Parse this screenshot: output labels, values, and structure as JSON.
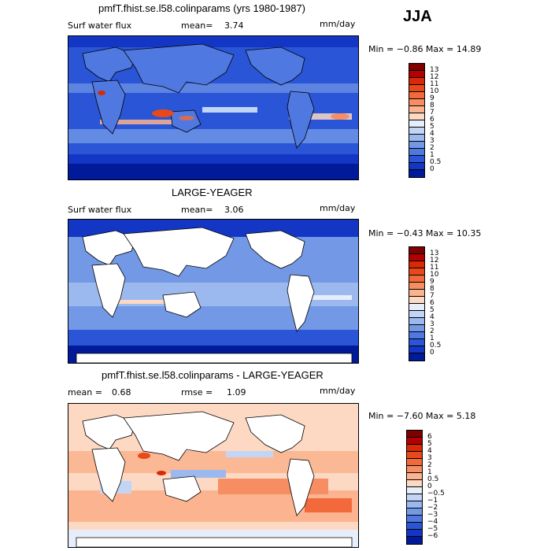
{
  "season": "JJA",
  "panels": [
    {
      "title": "pmfT.fhist.se.l58.colinparams (yrs 1980-1987)",
      "left_label": "Surf water flux",
      "stat_label": "mean=",
      "stat_value": "3.74",
      "stat2_label": "",
      "stat2_value": "",
      "units": "mm/day",
      "min_max": "Min =  −0.86 Max =  14.89",
      "land_masked": false,
      "colorbar": {
        "labels": [
          "13",
          "12",
          "11",
          "10",
          "9",
          "8",
          "7",
          "6",
          "5",
          "4",
          "3",
          "2",
          "1",
          "0.5",
          "0"
        ],
        "colors": [
          "#7f0000",
          "#b40000",
          "#d72a05",
          "#e8491a",
          "#f26a3b",
          "#f78e63",
          "#fbb48f",
          "#fdd9c4",
          "#e6eefb",
          "#c2d5f5",
          "#9bb9ee",
          "#7399e6",
          "#4f78e0",
          "#2a55d6",
          "#1436c4",
          "#001a99"
        ]
      }
    },
    {
      "title": "LARGE-YEAGER",
      "left_label": "Surf water flux",
      "stat_label": "mean=",
      "stat_value": "3.06",
      "stat2_label": "",
      "stat2_value": "",
      "units": "mm/day",
      "min_max": "Min =  −0.43 Max =  10.35",
      "land_masked": true,
      "colorbar": {
        "labels": [
          "13",
          "12",
          "11",
          "10",
          "9",
          "8",
          "7",
          "6",
          "5",
          "4",
          "3",
          "2",
          "1",
          "0.5",
          "0"
        ],
        "colors": [
          "#7f0000",
          "#b40000",
          "#d72a05",
          "#e8491a",
          "#f26a3b",
          "#f78e63",
          "#fbb48f",
          "#fdd9c4",
          "#e6eefb",
          "#c2d5f5",
          "#9bb9ee",
          "#7399e6",
          "#4f78e0",
          "#2a55d6",
          "#1436c4",
          "#001a99"
        ]
      }
    },
    {
      "title": "pmfT.fhist.se.l58.colinparams - LARGE-YEAGER",
      "left_label": "mean =",
      "stat_label": "",
      "stat_value": "0.68",
      "stat2_label": "rmse =",
      "stat2_value": "1.09",
      "units": "mm/day",
      "min_max": "Min =  −7.60 Max =   5.18",
      "land_masked": true,
      "colorbar": {
        "labels": [
          "6",
          "5",
          "4",
          "3",
          "2",
          "1",
          "0.5",
          "0",
          "−0.5",
          "−1",
          "−2",
          "−3",
          "−4",
          "−5",
          "−6"
        ],
        "colors": [
          "#7f0000",
          "#b40000",
          "#d72a05",
          "#e8491a",
          "#f26a3b",
          "#f78e63",
          "#fbb48f",
          "#fdd9c4",
          "#e6eefb",
          "#c2d5f5",
          "#9bb9ee",
          "#7399e6",
          "#4f78e0",
          "#2a55d6",
          "#1436c4",
          "#001a99"
        ]
      }
    }
  ]
}
